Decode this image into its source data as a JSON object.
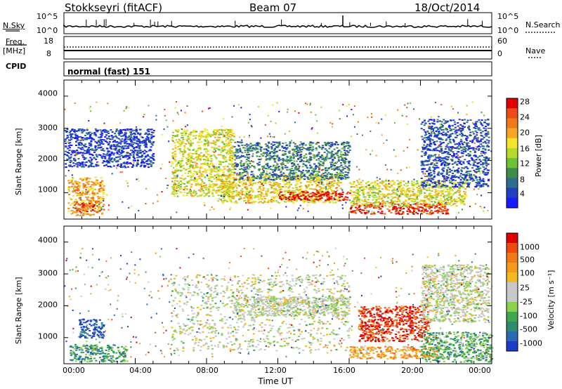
{
  "header": {
    "station": "Stokkseyri (fitACF)",
    "beam": "Beam 07",
    "date": "18/Oct/2014"
  },
  "strip_nsky": {
    "left_label": "N.Sky",
    "left_ticks": [
      "10^5",
      "10^0"
    ],
    "right_label": "N.Search",
    "right_ticks": [
      "10^5",
      "10^0"
    ]
  },
  "strip_freq": {
    "left_label_1": "Freq.",
    "left_label_2": "[MHz]",
    "left_ticks": [
      "18",
      "8"
    ],
    "right_label": "Nave",
    "right_ticks": [
      "60",
      "0"
    ]
  },
  "strip_cpid": {
    "label": "CPID",
    "text": "normal (fast) 151"
  },
  "chart_data": [
    {
      "type": "heatmap",
      "title": "",
      "xlabel": "",
      "ylabel": "Slant Range [km]",
      "x_ticks": [
        "00:00",
        "04:00",
        "08:00",
        "12:00",
        "16:00",
        "20:00",
        "00:00"
      ],
      "y_ticks": [
        "1000",
        "2000",
        "3000",
        "4000"
      ],
      "xlim_hours": [
        0,
        24
      ],
      "ylim_km": [
        180,
        4500
      ],
      "colorbar": {
        "label": "Power [dB]",
        "ticks": [
          "4",
          "8",
          "12",
          "16",
          "20",
          "24",
          "28"
        ],
        "colors": [
          "#1a1aff",
          "#2040c0",
          "#2d6e8e",
          "#3d8c4a",
          "#6cc33a",
          "#b7d92e",
          "#f2e52a",
          "#f5a623",
          "#f07a1a",
          "#ef4a1a",
          "#e00000"
        ]
      },
      "regions": [
        {
          "x0": 0.2,
          "x1": 2.2,
          "y0": 300,
          "y1": 1500,
          "level": 0.7
        },
        {
          "x0": 0.5,
          "x1": 1.8,
          "y0": 400,
          "y1": 700,
          "level": 0.85
        },
        {
          "x0": 6.0,
          "x1": 9.5,
          "y0": 900,
          "y1": 3000,
          "level": 0.55
        },
        {
          "x0": 8.5,
          "x1": 15.5,
          "y0": 700,
          "y1": 1600,
          "level": 0.6
        },
        {
          "x0": 12.0,
          "x1": 16.0,
          "y0": 780,
          "y1": 1050,
          "level": 0.95
        },
        {
          "x0": 9.5,
          "x1": 16.0,
          "y0": 1400,
          "y1": 2600,
          "level": 0.25
        },
        {
          "x0": 16.0,
          "x1": 21.5,
          "y0": 350,
          "y1": 700,
          "level": 0.9
        },
        {
          "x0": 16.0,
          "x1": 22.5,
          "y0": 600,
          "y1": 1400,
          "level": 0.55
        },
        {
          "x0": 20.0,
          "x1": 23.8,
          "y0": 1200,
          "y1": 3300,
          "level": 0.15
        },
        {
          "x0": 0.0,
          "x1": 5.0,
          "y0": 1800,
          "y1": 3000,
          "level": 0.12
        }
      ]
    },
    {
      "type": "heatmap",
      "title": "",
      "xlabel": "Time UT",
      "ylabel": "Slant Range [km]",
      "x_ticks": [
        "00:00",
        "04:00",
        "08:00",
        "12:00",
        "16:00",
        "20:00",
        "00:00"
      ],
      "y_ticks": [
        "1000",
        "2000",
        "3000",
        "4000"
      ],
      "xlim_hours": [
        0,
        24
      ],
      "ylim_km": [
        180,
        4500
      ],
      "colorbar": {
        "label": "Velocity [m s⁻¹]",
        "ticks": [
          "1000",
          "500",
          "100",
          "25",
          "-25",
          "-100",
          "-500",
          "-1000"
        ],
        "colors": [
          "#1a3cc8",
          "#2a6ab4",
          "#2e8c6a",
          "#3fa84a",
          "#8cd050",
          "#c8c8c8",
          "#c8c8c8",
          "#f5b820",
          "#f59a1a",
          "#f07a14",
          "#ee4a10",
          "#e00000"
        ]
      },
      "regions": [
        {
          "x0": 0.3,
          "x1": 3.5,
          "y0": 250,
          "y1": 800,
          "level": 0.25
        },
        {
          "x0": 0.8,
          "x1": 2.2,
          "y0": 1000,
          "y1": 1600,
          "level": 0.05
        },
        {
          "x0": 6.0,
          "x1": 16.0,
          "y0": 600,
          "y1": 3000,
          "level": 0.47
        },
        {
          "x0": 9.5,
          "x1": 16.0,
          "y0": 1700,
          "y1": 2300,
          "level": 0.47
        },
        {
          "x0": 16.0,
          "x1": 21.0,
          "y0": 350,
          "y1": 750,
          "level": 0.7
        },
        {
          "x0": 16.5,
          "x1": 20.5,
          "y0": 900,
          "y1": 2000,
          "level": 0.92
        },
        {
          "x0": 20.0,
          "x1": 24.0,
          "y0": 250,
          "y1": 1200,
          "level": 0.3
        },
        {
          "x0": 20.0,
          "x1": 23.8,
          "y0": 1500,
          "y1": 3300,
          "level": 0.47
        }
      ]
    }
  ]
}
